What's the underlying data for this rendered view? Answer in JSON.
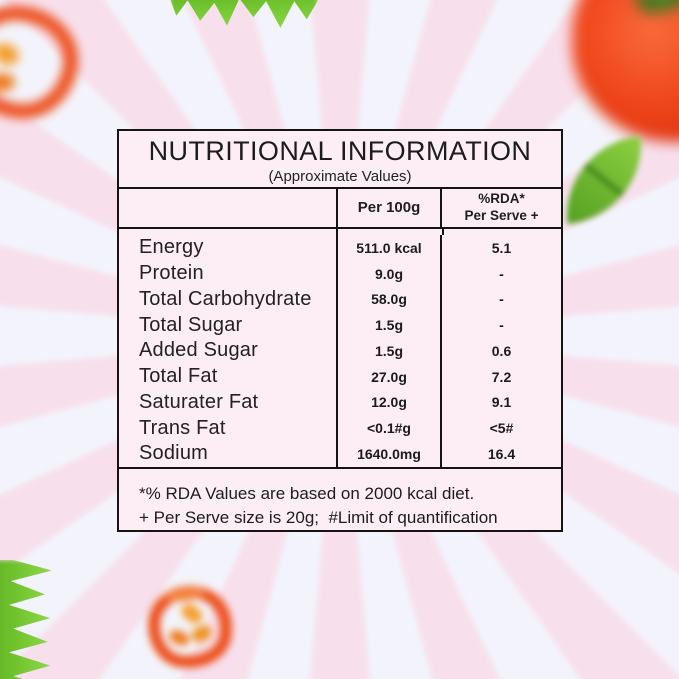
{
  "panel": {
    "title": "NUTRITIONAL INFORMATION",
    "subtitle": "(Approximate Values)",
    "columns": {
      "nutrient": "",
      "per_100g": "Per 100g",
      "rda_line1": "%RDA*",
      "rda_line2": "Per Serve +"
    },
    "rows": [
      {
        "label": "Energy",
        "per_100g": "511.0 kcal",
        "rda": "5.1"
      },
      {
        "label": "Protein",
        "per_100g": "9.0g",
        "rda": "-"
      },
      {
        "label": "Total Carbohydrate",
        "per_100g": "58.0g",
        "rda": "-"
      },
      {
        "label": "Total Sugar",
        "per_100g": "1.5g",
        "rda": "-"
      },
      {
        "label": "Added Sugar",
        "per_100g": "1.5g",
        "rda": "0.6"
      },
      {
        "label": "Total Fat",
        "per_100g": "27.0g",
        "rda": "7.2"
      },
      {
        "label": "Saturater Fat",
        "per_100g": "12.0g",
        "rda": "9.1"
      },
      {
        "label": "Trans Fat",
        "per_100g": "<0.1#g",
        "rda": "<5#"
      },
      {
        "label": "Sodium",
        "per_100g": "1640.0mg",
        "rda": "16.4"
      }
    ],
    "footnotes": [
      "*% RDA Values are based on 2000 kcal diet.",
      "+ Per Serve size is 20g;  #Limit of quantification"
    ]
  },
  "decorations": {
    "background": "pink-starburst-rays",
    "images": [
      {
        "name": "pepper-slice-image",
        "position": "top-left"
      },
      {
        "name": "leaf-image",
        "position": "top-center"
      },
      {
        "name": "tomato-image",
        "position": "top-right"
      },
      {
        "name": "leaf-image",
        "position": "right-middle"
      },
      {
        "name": "leaf-image",
        "position": "bottom-left"
      },
      {
        "name": "pepper-slice-image",
        "position": "bottom-center"
      }
    ]
  },
  "colors": {
    "ray_pink": "#f7e0ec",
    "background": "#f3f4fb",
    "panel_fill": "#fdeef5",
    "panel_border": "#141414",
    "text": "#1e1e1e",
    "leaf_green": "#6cc02a",
    "tomato_red": "#ee4419",
    "pepper_orange": "#ee5526"
  }
}
